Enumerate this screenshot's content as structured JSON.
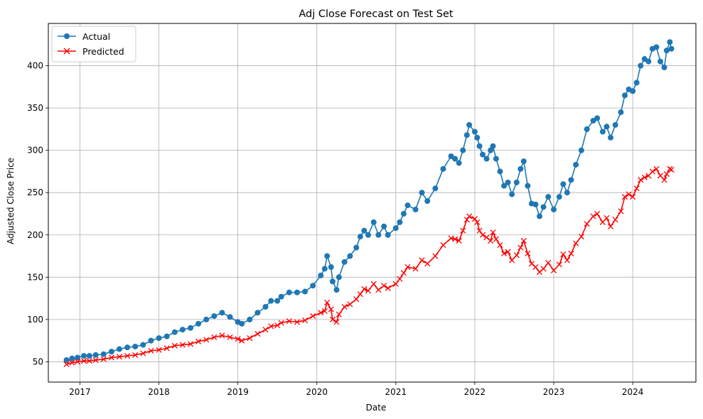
{
  "chart_data": {
    "type": "line",
    "title": "Adj Close Forecast on Test Set",
    "xlabel": "Date",
    "ylabel": "Adjusted Close Price",
    "xlim": [
      2016.6,
      2024.8
    ],
    "ylim": [
      26,
      450
    ],
    "grid": true,
    "legend_position": "upper-left",
    "x_ticks": [
      2017,
      2018,
      2019,
      2020,
      2021,
      2022,
      2023,
      2024
    ],
    "x_tick_labels": [
      "2017",
      "2018",
      "2019",
      "2020",
      "2021",
      "2022",
      "2023",
      "2024"
    ],
    "y_ticks": [
      50,
      100,
      150,
      200,
      250,
      300,
      350,
      400
    ],
    "y_tick_labels": [
      "50",
      "100",
      "150",
      "200",
      "250",
      "300",
      "350",
      "400"
    ],
    "colors": {
      "actual": "#1f77b4",
      "predicted": "#ff0000"
    },
    "series": [
      {
        "name": "Actual",
        "marker": "circle",
        "color": "#1f77b4",
        "points": [
          [
            2016.83,
            52
          ],
          [
            2016.9,
            54
          ],
          [
            2016.97,
            55
          ],
          [
            2017.05,
            57
          ],
          [
            2017.12,
            57
          ],
          [
            2017.2,
            58
          ],
          [
            2017.3,
            59
          ],
          [
            2017.4,
            62
          ],
          [
            2017.5,
            65
          ],
          [
            2017.6,
            67
          ],
          [
            2017.7,
            68
          ],
          [
            2017.8,
            70
          ],
          [
            2017.9,
            75
          ],
          [
            2018.0,
            78
          ],
          [
            2018.1,
            80
          ],
          [
            2018.2,
            85
          ],
          [
            2018.3,
            88
          ],
          [
            2018.4,
            90
          ],
          [
            2018.5,
            95
          ],
          [
            2018.6,
            100
          ],
          [
            2018.7,
            104
          ],
          [
            2018.8,
            108
          ],
          [
            2018.9,
            103
          ],
          [
            2019.0,
            97
          ],
          [
            2019.05,
            95
          ],
          [
            2019.15,
            100
          ],
          [
            2019.25,
            108
          ],
          [
            2019.35,
            115
          ],
          [
            2019.42,
            122
          ],
          [
            2019.5,
            122
          ],
          [
            2019.55,
            127
          ],
          [
            2019.65,
            132
          ],
          [
            2019.75,
            132
          ],
          [
            2019.85,
            133
          ],
          [
            2019.95,
            140
          ],
          [
            2020.05,
            152
          ],
          [
            2020.1,
            160
          ],
          [
            2020.13,
            175
          ],
          [
            2020.18,
            162
          ],
          [
            2020.2,
            145
          ],
          [
            2020.25,
            135
          ],
          [
            2020.28,
            150
          ],
          [
            2020.35,
            168
          ],
          [
            2020.42,
            175
          ],
          [
            2020.5,
            185
          ],
          [
            2020.55,
            198
          ],
          [
            2020.6,
            205
          ],
          [
            2020.65,
            200
          ],
          [
            2020.72,
            215
          ],
          [
            2020.78,
            200
          ],
          [
            2020.85,
            210
          ],
          [
            2020.9,
            200
          ],
          [
            2021.0,
            208
          ],
          [
            2021.05,
            215
          ],
          [
            2021.1,
            225
          ],
          [
            2021.15,
            235
          ],
          [
            2021.25,
            230
          ],
          [
            2021.33,
            250
          ],
          [
            2021.4,
            240
          ],
          [
            2021.5,
            255
          ],
          [
            2021.6,
            278
          ],
          [
            2021.7,
            293
          ],
          [
            2021.75,
            290
          ],
          [
            2021.8,
            285
          ],
          [
            2021.85,
            300
          ],
          [
            2021.9,
            318
          ],
          [
            2021.93,
            330
          ],
          [
            2022.0,
            322
          ],
          [
            2022.03,
            315
          ],
          [
            2022.06,
            305
          ],
          [
            2022.1,
            295
          ],
          [
            2022.15,
            290
          ],
          [
            2022.2,
            300
          ],
          [
            2022.23,
            305
          ],
          [
            2022.27,
            290
          ],
          [
            2022.32,
            275
          ],
          [
            2022.37,
            258
          ],
          [
            2022.42,
            262
          ],
          [
            2022.47,
            248
          ],
          [
            2022.53,
            262
          ],
          [
            2022.58,
            278
          ],
          [
            2022.62,
            287
          ],
          [
            2022.67,
            258
          ],
          [
            2022.72,
            237
          ],
          [
            2022.77,
            236
          ],
          [
            2022.82,
            222
          ],
          [
            2022.87,
            233
          ],
          [
            2022.93,
            245
          ],
          [
            2023.0,
            230
          ],
          [
            2023.07,
            245
          ],
          [
            2023.12,
            260
          ],
          [
            2023.17,
            250
          ],
          [
            2023.22,
            265
          ],
          [
            2023.28,
            283
          ],
          [
            2023.35,
            300
          ],
          [
            2023.42,
            325
          ],
          [
            2023.5,
            335
          ],
          [
            2023.55,
            338
          ],
          [
            2023.62,
            322
          ],
          [
            2023.67,
            328
          ],
          [
            2023.72,
            315
          ],
          [
            2023.78,
            330
          ],
          [
            2023.85,
            345
          ],
          [
            2023.9,
            365
          ],
          [
            2023.95,
            372
          ],
          [
            2024.0,
            370
          ],
          [
            2024.05,
            380
          ],
          [
            2024.1,
            400
          ],
          [
            2024.15,
            408
          ],
          [
            2024.2,
            405
          ],
          [
            2024.25,
            420
          ],
          [
            2024.3,
            422
          ],
          [
            2024.35,
            405
          ],
          [
            2024.4,
            398
          ],
          [
            2024.43,
            418
          ],
          [
            2024.47,
            428
          ],
          [
            2024.49,
            420
          ]
        ]
      },
      {
        "name": "Predicted",
        "marker": "x",
        "color": "#ff0000",
        "points": [
          [
            2016.83,
            47
          ],
          [
            2016.9,
            49
          ],
          [
            2016.97,
            50
          ],
          [
            2017.05,
            51
          ],
          [
            2017.12,
            51
          ],
          [
            2017.2,
            52
          ],
          [
            2017.3,
            53
          ],
          [
            2017.4,
            55
          ],
          [
            2017.5,
            56
          ],
          [
            2017.6,
            57
          ],
          [
            2017.7,
            58
          ],
          [
            2017.8,
            60
          ],
          [
            2017.9,
            63
          ],
          [
            2018.0,
            64
          ],
          [
            2018.1,
            66
          ],
          [
            2018.2,
            69
          ],
          [
            2018.3,
            70
          ],
          [
            2018.4,
            71
          ],
          [
            2018.5,
            74
          ],
          [
            2018.6,
            76
          ],
          [
            2018.7,
            79
          ],
          [
            2018.8,
            81
          ],
          [
            2018.9,
            79
          ],
          [
            2019.0,
            77
          ],
          [
            2019.05,
            75
          ],
          [
            2019.15,
            78
          ],
          [
            2019.25,
            83
          ],
          [
            2019.35,
            88
          ],
          [
            2019.42,
            92
          ],
          [
            2019.5,
            93
          ],
          [
            2019.55,
            96
          ],
          [
            2019.65,
            98
          ],
          [
            2019.75,
            97
          ],
          [
            2019.85,
            99
          ],
          [
            2019.95,
            104
          ],
          [
            2020.05,
            108
          ],
          [
            2020.1,
            110
          ],
          [
            2020.13,
            120
          ],
          [
            2020.18,
            112
          ],
          [
            2020.2,
            100
          ],
          [
            2020.25,
            97
          ],
          [
            2020.28,
            106
          ],
          [
            2020.35,
            115
          ],
          [
            2020.42,
            118
          ],
          [
            2020.5,
            124
          ],
          [
            2020.55,
            130
          ],
          [
            2020.6,
            136
          ],
          [
            2020.65,
            134
          ],
          [
            2020.72,
            142
          ],
          [
            2020.78,
            135
          ],
          [
            2020.85,
            140
          ],
          [
            2020.9,
            137
          ],
          [
            2021.0,
            142
          ],
          [
            2021.05,
            148
          ],
          [
            2021.1,
            155
          ],
          [
            2021.15,
            162
          ],
          [
            2021.25,
            160
          ],
          [
            2021.33,
            170
          ],
          [
            2021.4,
            166
          ],
          [
            2021.5,
            175
          ],
          [
            2021.6,
            188
          ],
          [
            2021.7,
            196
          ],
          [
            2021.75,
            195
          ],
          [
            2021.8,
            193
          ],
          [
            2021.85,
            205
          ],
          [
            2021.9,
            218
          ],
          [
            2021.93,
            222
          ],
          [
            2022.0,
            219
          ],
          [
            2022.03,
            215
          ],
          [
            2022.06,
            205
          ],
          [
            2022.1,
            200
          ],
          [
            2022.15,
            197
          ],
          [
            2022.2,
            193
          ],
          [
            2022.23,
            203
          ],
          [
            2022.27,
            195
          ],
          [
            2022.32,
            188
          ],
          [
            2022.37,
            178
          ],
          [
            2022.42,
            180
          ],
          [
            2022.47,
            170
          ],
          [
            2022.53,
            176
          ],
          [
            2022.58,
            185
          ],
          [
            2022.62,
            193
          ],
          [
            2022.67,
            178
          ],
          [
            2022.72,
            166
          ],
          [
            2022.77,
            162
          ],
          [
            2022.82,
            156
          ],
          [
            2022.87,
            160
          ],
          [
            2022.93,
            167
          ],
          [
            2023.0,
            158
          ],
          [
            2023.07,
            165
          ],
          [
            2023.12,
            177
          ],
          [
            2023.17,
            170
          ],
          [
            2023.22,
            178
          ],
          [
            2023.28,
            190
          ],
          [
            2023.35,
            198
          ],
          [
            2023.42,
            213
          ],
          [
            2023.5,
            222
          ],
          [
            2023.55,
            225
          ],
          [
            2023.62,
            215
          ],
          [
            2023.67,
            220
          ],
          [
            2023.72,
            210
          ],
          [
            2023.78,
            218
          ],
          [
            2023.85,
            228
          ],
          [
            2023.9,
            245
          ],
          [
            2023.95,
            248
          ],
          [
            2024.0,
            245
          ],
          [
            2024.05,
            255
          ],
          [
            2024.1,
            265
          ],
          [
            2024.15,
            268
          ],
          [
            2024.2,
            270
          ],
          [
            2024.25,
            275
          ],
          [
            2024.3,
            278
          ],
          [
            2024.35,
            270
          ],
          [
            2024.4,
            265
          ],
          [
            2024.43,
            272
          ],
          [
            2024.47,
            278
          ],
          [
            2024.49,
            277
          ]
        ]
      }
    ]
  }
}
